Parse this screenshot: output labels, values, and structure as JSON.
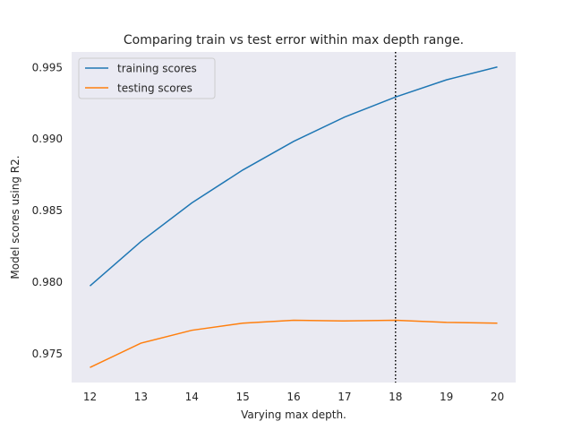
{
  "chart_data": {
    "type": "line",
    "title": "Comparing train vs test error within max depth range.",
    "xlabel": "Varying max depth.",
    "ylabel": "Model scores using R2.",
    "x": [
      12,
      13,
      14,
      15,
      16,
      17,
      18,
      19,
      20
    ],
    "xlim": [
      11.64,
      20.36
    ],
    "ylim": [
      0.97295,
      0.99605
    ],
    "xticks": [
      "12",
      "13",
      "14",
      "15",
      "16",
      "17",
      "18",
      "19",
      "20"
    ],
    "yticks": [
      {
        "value": 0.975,
        "label": "0.975"
      },
      {
        "value": 0.98,
        "label": "0.980"
      },
      {
        "value": 0.985,
        "label": "0.985"
      },
      {
        "value": 0.99,
        "label": "0.990"
      },
      {
        "value": 0.995,
        "label": "0.995"
      }
    ],
    "series": [
      {
        "name": "training scores",
        "color": "#1f77b4",
        "values": [
          0.9797,
          0.9828,
          0.9855,
          0.9878,
          0.9898,
          0.9915,
          0.9929,
          0.9941,
          0.995
        ]
      },
      {
        "name": "testing scores",
        "color": "#ff7f0e",
        "values": [
          0.974,
          0.9757,
          0.9766,
          0.9771,
          0.9773,
          0.97725,
          0.9773,
          0.97715,
          0.9771
        ]
      }
    ],
    "vline": {
      "x": 18,
      "style": "dotted",
      "color": "#000000"
    },
    "grid": false,
    "background": "#eaeaf2",
    "legend": "top-left"
  }
}
